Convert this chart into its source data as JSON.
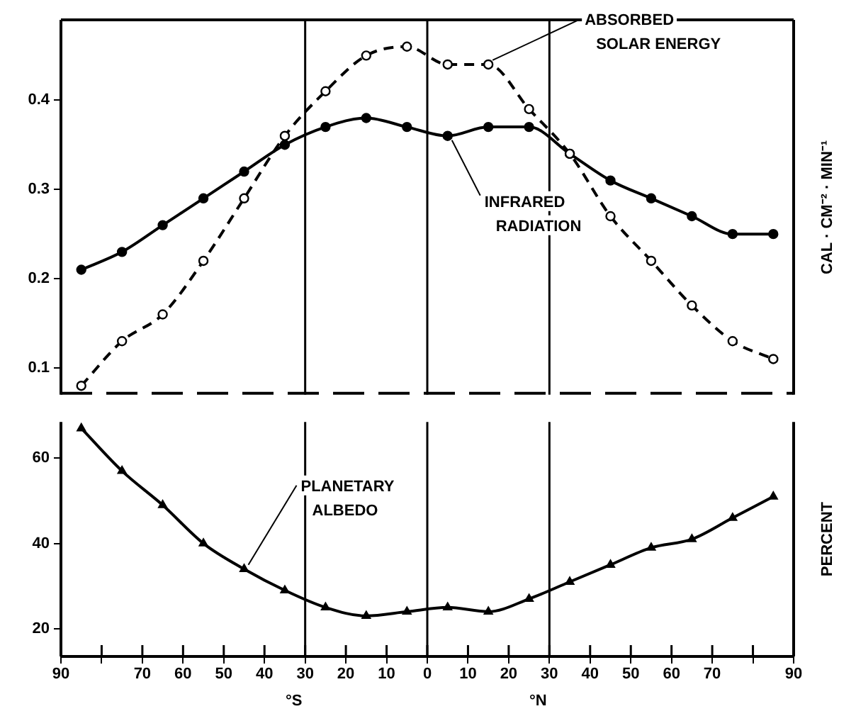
{
  "chart_data": [
    {
      "type": "line",
      "ylabel": "CAL · CM⁻² · MIN⁻¹",
      "x": [
        -85,
        -75,
        -65,
        -55,
        -45,
        -35,
        -25,
        -15,
        -5,
        5,
        15,
        25,
        35,
        45,
        55,
        65,
        75,
        85
      ],
      "series": [
        {
          "name": "ABSORBED SOLAR ENERGY",
          "color": "#000000",
          "line_style": "dashed",
          "marker": "circle",
          "values": [
            0.08,
            0.13,
            0.16,
            0.22,
            0.29,
            0.36,
            0.41,
            0.45,
            0.46,
            0.44,
            0.44,
            0.39,
            0.34,
            0.27,
            0.22,
            0.17,
            0.13,
            0.11
          ]
        },
        {
          "name": "INFRARED RADIATION",
          "color": "#000000",
          "line_style": "solid",
          "marker": "circle",
          "values": [
            0.21,
            0.23,
            0.26,
            0.29,
            0.32,
            0.35,
            0.37,
            0.38,
            0.37,
            0.36,
            0.37,
            0.37,
            0.34,
            0.31,
            0.29,
            0.27,
            0.25,
            0.25
          ]
        }
      ],
      "xlim": [
        -90,
        90
      ],
      "ylim": [
        0.07,
        0.49
      ],
      "yticks": [
        0.1,
        0.2,
        0.3,
        0.4
      ],
      "tick_labels": "y",
      "grid": false,
      "ref_lines": [
        {
          "axis": "x",
          "value": -30
        },
        {
          "axis": "x",
          "value": 0
        },
        {
          "axis": "x",
          "value": 30
        }
      ]
    },
    {
      "type": "line",
      "ylabel": "PERCENT",
      "x": [
        -85,
        -75,
        -65,
        -55,
        -45,
        -35,
        -25,
        -15,
        -5,
        5,
        15,
        25,
        35,
        45,
        55,
        65,
        75,
        85
      ],
      "series": [
        {
          "name": "PLANETARY ALBEDO",
          "color": "#000000",
          "line_style": "solid",
          "marker": "triangle",
          "values": [
            67,
            57,
            49,
            40,
            34,
            29,
            25,
            23,
            24,
            25,
            24,
            27,
            31,
            35,
            39,
            41,
            46,
            51
          ]
        }
      ],
      "xlim": [
        -90,
        90
      ],
      "xticks": [
        {
          "value": -90,
          "label": "90"
        },
        {
          "value": -80,
          "label": null
        },
        {
          "value": -70,
          "label": "70"
        },
        {
          "value": -60,
          "label": "60"
        },
        {
          "value": -50,
          "label": "50"
        },
        {
          "value": -40,
          "label": "40"
        },
        {
          "value": -30,
          "label": "30"
        },
        {
          "value": -20,
          "label": "20"
        },
        {
          "value": -10,
          "label": "10"
        },
        0,
        10,
        20,
        30,
        40,
        50,
        60,
        70,
        {
          "value": 80,
          "label": null
        },
        90
      ],
      "ylim": [
        13.5,
        68.5
      ],
      "yticks": [
        20,
        40,
        60
      ],
      "grid": false,
      "ref_lines": [
        {
          "axis": "x",
          "value": -30
        },
        {
          "axis": "x",
          "value": 0
        },
        {
          "axis": "x",
          "value": 30
        }
      ],
      "annotations": [
        "°S",
        "°N"
      ]
    }
  ]
}
